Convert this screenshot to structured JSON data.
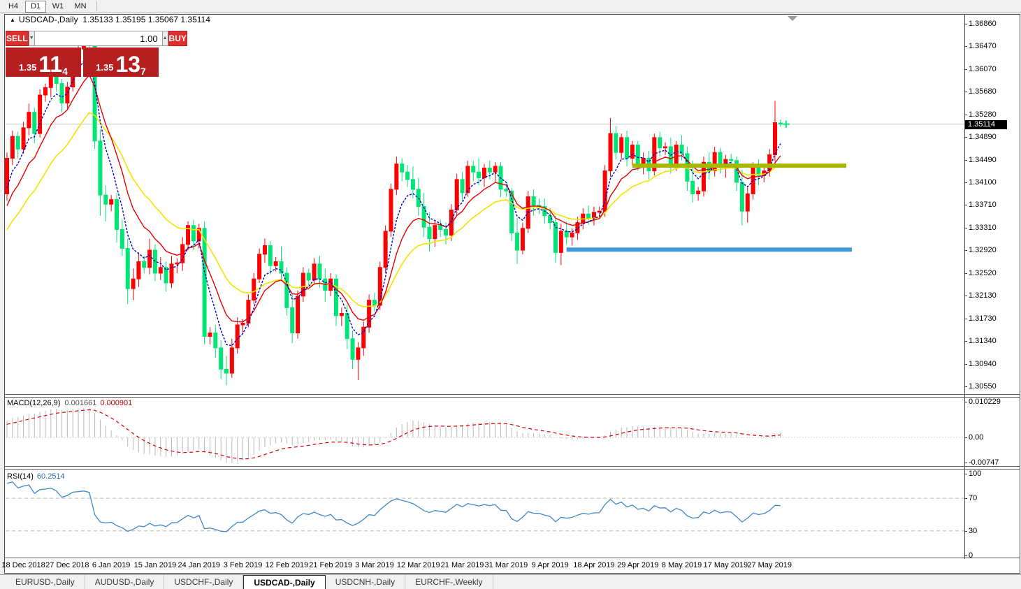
{
  "toolbar": {
    "timeframes": [
      {
        "label": "H4",
        "active": false
      },
      {
        "label": "D1",
        "active": true
      },
      {
        "label": "W1",
        "active": false
      },
      {
        "label": "MN",
        "active": false
      }
    ]
  },
  "chart_header": {
    "collapse_arrow": "▲",
    "symbol": "USDCAD-,Daily",
    "ohlc_text": "1.35133 1.35195 1.35067 1.35114"
  },
  "trade_panel": {
    "sell_label": "SELL",
    "buy_label": "BUY",
    "volume": "1.00",
    "sell_price_small": "1.35",
    "sell_price_big": "11",
    "sell_price_sup": "4",
    "buy_price_small": "1.35",
    "buy_price_big": "13",
    "buy_price_sup": "7"
  },
  "price_tag": "1.35114",
  "macd_panel": {
    "label": "MACD(12,26,9)",
    "value": "0.001661",
    "signal_value": "0.000901",
    "axis_ticks": [
      "0.010229",
      "0.00",
      "-0.00747"
    ]
  },
  "rsi_panel": {
    "label": "RSI(14)",
    "value": "60.2514",
    "axis_ticks": [
      "100",
      "70",
      "30",
      "0"
    ]
  },
  "tabs": [
    {
      "label": "EURUSD-,Daily",
      "active": false
    },
    {
      "label": "AUDUSD-,Daily",
      "active": false
    },
    {
      "label": "USDCHF-,Daily",
      "active": false
    },
    {
      "label": "USDCAD-,Daily",
      "active": true
    },
    {
      "label": "USDCNH-,Daily",
      "active": false
    },
    {
      "label": "EURCHF-,Weekly",
      "active": false
    }
  ],
  "colors": {
    "bull_candle": "#ff0000",
    "bear_candle": "#00e676",
    "ema_fast": "#0000cc",
    "ema_mid": "#e60000",
    "ema_slow": "#f2e400",
    "macd_histogram": "#b8b8b8",
    "macd_signal": "#dd0000",
    "rsi_line": "#4187c7",
    "rsi_levels": "#b5b5b5",
    "support_line": "#3f96d9",
    "resistance_line": "#a8b800",
    "current_price_line": "#c8c8c8",
    "button_red": "#dd2f2f",
    "tile_red": "#b51f1f"
  },
  "chart_data": {
    "type": "candlestick",
    "title": "USDCAD-,Daily",
    "note_color_convention": "up bars red, down bars green",
    "current_bar": {
      "open": 1.35133,
      "high": 1.35195,
      "low": 1.35067,
      "close": 1.35114
    },
    "ylim": [
      1.30489,
      1.37006
    ],
    "price_ticks": [
      "1.36860",
      "1.36470",
      "1.36070",
      "1.35680",
      "1.35280",
      "1.34890",
      "1.34490",
      "1.34100",
      "1.33710",
      "1.33310",
      "1.32920",
      "1.32520",
      "1.32130",
      "1.31730",
      "1.31340",
      "1.30940",
      "1.30550"
    ],
    "date_ticks": [
      {
        "label": "18 Dec 2018",
        "bar": 3
      },
      {
        "label": "27 Dec 2018",
        "bar": 11
      },
      {
        "label": "6 Jan 2019",
        "bar": 19
      },
      {
        "label": "15 Jan 2019",
        "bar": 27
      },
      {
        "label": "24 Jan 2019",
        "bar": 35
      },
      {
        "label": "3 Feb 2019",
        "bar": 43
      },
      {
        "label": "12 Feb 2019",
        "bar": 51
      },
      {
        "label": "21 Feb 2019",
        "bar": 59
      },
      {
        "label": "3 Mar 2019",
        "bar": 67
      },
      {
        "label": "12 Mar 2019",
        "bar": 75
      },
      {
        "label": "21 Mar 2019",
        "bar": 83
      },
      {
        "label": "31 Mar 2019",
        "bar": 91
      },
      {
        "label": "9 Apr 2019",
        "bar": 99
      },
      {
        "label": "18 Apr 2019",
        "bar": 107
      },
      {
        "label": "29 Apr 2019",
        "bar": 115
      },
      {
        "label": "8 May 2019",
        "bar": 123
      },
      {
        "label": "17 May 2019",
        "bar": 131
      },
      {
        "label": "27 May 2019",
        "bar": 139
      }
    ],
    "ohlc": [
      [
        1.339,
        1.3462,
        1.3378,
        1.3452
      ],
      [
        1.3452,
        1.35,
        1.344,
        1.349
      ],
      [
        1.349,
        1.3498,
        1.3452,
        1.3468
      ],
      [
        1.3468,
        1.3515,
        1.346,
        1.3505
      ],
      [
        1.3505,
        1.3547,
        1.3492,
        1.3532
      ],
      [
        1.3532,
        1.354,
        1.3478,
        1.3495
      ],
      [
        1.3495,
        1.3572,
        1.3488,
        1.3562
      ],
      [
        1.3562,
        1.3582,
        1.355,
        1.3575
      ],
      [
        1.3575,
        1.3605,
        1.3558,
        1.3595
      ],
      [
        1.3595,
        1.3608,
        1.3568,
        1.3582
      ],
      [
        1.3582,
        1.359,
        1.3532,
        1.3548
      ],
      [
        1.3548,
        1.3585,
        1.3538,
        1.3576
      ],
      [
        1.3576,
        1.3642,
        1.3568,
        1.3632
      ],
      [
        1.3632,
        1.365,
        1.3618,
        1.3642
      ],
      [
        1.3642,
        1.3664,
        1.3622,
        1.3655
      ],
      [
        1.3655,
        1.3662,
        1.3638,
        1.3648
      ],
      [
        1.3648,
        1.366,
        1.3468,
        1.3482
      ],
      [
        1.3482,
        1.3502,
        1.3352,
        1.3388
      ],
      [
        1.3388,
        1.3405,
        1.3342,
        1.3372
      ],
      [
        1.3372,
        1.3388,
        1.336,
        1.338
      ],
      [
        1.338,
        1.3392,
        1.3305,
        1.3328
      ],
      [
        1.3328,
        1.3345,
        1.3282,
        1.3295
      ],
      [
        1.3295,
        1.3312,
        1.3198,
        1.3225
      ],
      [
        1.3225,
        1.326,
        1.3205,
        1.3242
      ],
      [
        1.3242,
        1.3288,
        1.3228,
        1.3272
      ],
      [
        1.3272,
        1.3282,
        1.3252,
        1.3262
      ],
      [
        1.3262,
        1.3312,
        1.325,
        1.3292
      ],
      [
        1.3292,
        1.3302,
        1.3238,
        1.3252
      ],
      [
        1.3252,
        1.328,
        1.324,
        1.3262
      ],
      [
        1.3262,
        1.3272,
        1.322,
        1.3235
      ],
      [
        1.3235,
        1.3282,
        1.3226,
        1.3268
      ],
      [
        1.3268,
        1.3278,
        1.3252,
        1.327
      ],
      [
        1.327,
        1.3315,
        1.3256,
        1.3302
      ],
      [
        1.3302,
        1.3342,
        1.3292,
        1.3335
      ],
      [
        1.3335,
        1.3345,
        1.3292,
        1.3308
      ],
      [
        1.3308,
        1.3338,
        1.3295,
        1.333
      ],
      [
        1.333,
        1.3342,
        1.3128,
        1.3142
      ],
      [
        1.3142,
        1.3158,
        1.3128,
        1.3148
      ],
      [
        1.3148,
        1.3162,
        1.3105,
        1.3122
      ],
      [
        1.3122,
        1.3135,
        1.3068,
        1.3085
      ],
      [
        1.3085,
        1.3108,
        1.3057,
        1.3078
      ],
      [
        1.3078,
        1.3138,
        1.307,
        1.3122
      ],
      [
        1.3122,
        1.3175,
        1.3112,
        1.3162
      ],
      [
        1.3162,
        1.3172,
        1.3148,
        1.3165
      ],
      [
        1.3165,
        1.3215,
        1.3158,
        1.3205
      ],
      [
        1.3205,
        1.3252,
        1.3198,
        1.3242
      ],
      [
        1.3242,
        1.3295,
        1.3235,
        1.3285
      ],
      [
        1.3285,
        1.3312,
        1.327,
        1.33
      ],
      [
        1.33,
        1.3308,
        1.325,
        1.3265
      ],
      [
        1.3265,
        1.328,
        1.3255,
        1.3272
      ],
      [
        1.3272,
        1.3298,
        1.3238,
        1.3252
      ],
      [
        1.3252,
        1.3262,
        1.3178,
        1.3192
      ],
      [
        1.3192,
        1.3215,
        1.313,
        1.3148
      ],
      [
        1.3148,
        1.3222,
        1.3138,
        1.3212
      ],
      [
        1.3212,
        1.3262,
        1.3202,
        1.3252
      ],
      [
        1.3252,
        1.326,
        1.323,
        1.324
      ],
      [
        1.324,
        1.3278,
        1.3232,
        1.3268
      ],
      [
        1.3268,
        1.3282,
        1.3226,
        1.3242
      ],
      [
        1.3242,
        1.326,
        1.3202,
        1.3222
      ],
      [
        1.3222,
        1.3252,
        1.3212,
        1.3242
      ],
      [
        1.3242,
        1.325,
        1.316,
        1.3178
      ],
      [
        1.3178,
        1.3192,
        1.316,
        1.3182
      ],
      [
        1.3182,
        1.3198,
        1.312,
        1.3138
      ],
      [
        1.3138,
        1.3152,
        1.3085,
        1.3102
      ],
      [
        1.3102,
        1.3132,
        1.3066,
        1.3122
      ],
      [
        1.3122,
        1.3168,
        1.3108,
        1.3158
      ],
      [
        1.3158,
        1.3215,
        1.3148,
        1.3205
      ],
      [
        1.3205,
        1.3218,
        1.3185,
        1.3196
      ],
      [
        1.3196,
        1.3272,
        1.3188,
        1.3262
      ],
      [
        1.3262,
        1.3335,
        1.3252,
        1.3325
      ],
      [
        1.3325,
        1.3408,
        1.3315,
        1.3398
      ],
      [
        1.3398,
        1.3455,
        1.3388,
        1.3442
      ],
      [
        1.3442,
        1.3452,
        1.3412,
        1.3428
      ],
      [
        1.3428,
        1.344,
        1.3402,
        1.3415
      ],
      [
        1.3415,
        1.3438,
        1.3382,
        1.3398
      ],
      [
        1.3398,
        1.3418,
        1.3352,
        1.3368
      ],
      [
        1.3368,
        1.3392,
        1.3315,
        1.3332
      ],
      [
        1.3332,
        1.3358,
        1.329,
        1.3312
      ],
      [
        1.3312,
        1.3345,
        1.3298,
        1.3335
      ],
      [
        1.3335,
        1.3345,
        1.3315,
        1.3328
      ],
      [
        1.3328,
        1.334,
        1.3302,
        1.3318
      ],
      [
        1.3318,
        1.3372,
        1.3308,
        1.3362
      ],
      [
        1.3362,
        1.3425,
        1.3352,
        1.3415
      ],
      [
        1.3415,
        1.3428,
        1.3378,
        1.3392
      ],
      [
        1.3392,
        1.3448,
        1.3385,
        1.3438
      ],
      [
        1.3438,
        1.3448,
        1.3412,
        1.3428
      ],
      [
        1.3428,
        1.3452,
        1.3405,
        1.3418
      ],
      [
        1.3418,
        1.3442,
        1.3402,
        1.3435
      ],
      [
        1.3435,
        1.3448,
        1.3415,
        1.3428
      ],
      [
        1.3428,
        1.3445,
        1.341,
        1.3438
      ],
      [
        1.3438,
        1.3445,
        1.3385,
        1.3398
      ],
      [
        1.3398,
        1.3408,
        1.3385,
        1.3395
      ],
      [
        1.3395,
        1.34,
        1.3308,
        1.3322
      ],
      [
        1.3322,
        1.3348,
        1.3268,
        1.3292
      ],
      [
        1.3292,
        1.334,
        1.3285,
        1.333
      ],
      [
        1.333,
        1.3395,
        1.3322,
        1.3385
      ],
      [
        1.3385,
        1.3398,
        1.3352,
        1.337
      ],
      [
        1.337,
        1.3382,
        1.3355,
        1.3368
      ],
      [
        1.3368,
        1.3382,
        1.3338,
        1.3352
      ],
      [
        1.3352,
        1.3365,
        1.3328,
        1.334
      ],
      [
        1.334,
        1.3352,
        1.327,
        1.3288
      ],
      [
        1.3288,
        1.3338,
        1.3266,
        1.3325
      ],
      [
        1.3325,
        1.3342,
        1.3302,
        1.3315
      ],
      [
        1.3315,
        1.333,
        1.33,
        1.3322
      ],
      [
        1.3322,
        1.335,
        1.331,
        1.334
      ],
      [
        1.334,
        1.3365,
        1.3328,
        1.3355
      ],
      [
        1.3355,
        1.337,
        1.3336,
        1.3348
      ],
      [
        1.3348,
        1.3368,
        1.3335,
        1.3358
      ],
      [
        1.3358,
        1.3368,
        1.3346,
        1.336
      ],
      [
        1.336,
        1.344,
        1.335,
        1.343
      ],
      [
        1.343,
        1.3522,
        1.342,
        1.3495
      ],
      [
        1.3495,
        1.3508,
        1.345,
        1.3462
      ],
      [
        1.3462,
        1.3495,
        1.345,
        1.3488
      ],
      [
        1.3488,
        1.35,
        1.3438,
        1.3452
      ],
      [
        1.3452,
        1.3482,
        1.344,
        1.3475
      ],
      [
        1.3475,
        1.3482,
        1.343,
        1.3442
      ],
      [
        1.3442,
        1.3462,
        1.3424,
        1.3452
      ],
      [
        1.3452,
        1.3465,
        1.3415,
        1.343
      ],
      [
        1.343,
        1.3495,
        1.3422,
        1.3488
      ],
      [
        1.3488,
        1.3498,
        1.3455,
        1.347
      ],
      [
        1.347,
        1.348,
        1.3458,
        1.3472
      ],
      [
        1.3472,
        1.3488,
        1.3425,
        1.344
      ],
      [
        1.344,
        1.3482,
        1.343,
        1.3475
      ],
      [
        1.3475,
        1.3492,
        1.3448,
        1.346
      ],
      [
        1.346,
        1.3472,
        1.3395,
        1.3412
      ],
      [
        1.3412,
        1.3448,
        1.3375,
        1.339
      ],
      [
        1.339,
        1.3402,
        1.3378,
        1.3395
      ],
      [
        1.3395,
        1.3455,
        1.3385,
        1.3445
      ],
      [
        1.3445,
        1.3462,
        1.3415,
        1.343
      ],
      [
        1.343,
        1.3472,
        1.342,
        1.3462
      ],
      [
        1.3462,
        1.347,
        1.3425,
        1.344
      ],
      [
        1.344,
        1.3458,
        1.3418,
        1.345
      ],
      [
        1.345,
        1.346,
        1.3436,
        1.3448
      ],
      [
        1.3448,
        1.3455,
        1.3395,
        1.341
      ],
      [
        1.341,
        1.3432,
        1.3335,
        1.336
      ],
      [
        1.336,
        1.3402,
        1.334,
        1.339
      ],
      [
        1.339,
        1.3445,
        1.338,
        1.3435
      ],
      [
        1.3435,
        1.345,
        1.3405,
        1.3422
      ],
      [
        1.3422,
        1.3438,
        1.341,
        1.343
      ],
      [
        1.343,
        1.3468,
        1.342,
        1.3458
      ],
      [
        1.3458,
        1.3552,
        1.3446,
        1.3514
      ],
      [
        1.35133,
        1.35195,
        1.35067,
        1.35114
      ]
    ],
    "prehistory_closes": [
      1.3205,
      1.322,
      1.3212,
      1.3238,
      1.3255,
      1.3248,
      1.327,
      1.3285,
      1.3278,
      1.33,
      1.3315,
      1.3308,
      1.333,
      1.3345,
      1.3338,
      1.3358,
      1.3372,
      1.3365,
      1.3382,
      1.3395
    ],
    "overlays": {
      "ema_periods": [
        5,
        10,
        20
      ],
      "support_line": {
        "price": 1.3293,
        "from_bar": 102,
        "to_bar": 154
      },
      "resistance_line": {
        "price": 1.3439,
        "from_bar": 114,
        "to_bar": 153
      },
      "current_price": 1.35114
    },
    "indicators": {
      "macd": {
        "fast": 12,
        "slow": 26,
        "signal": 9,
        "value": 0.001661,
        "signal_value": 0.000901,
        "ylim": [
          -0.0074,
          0.0112
        ]
      },
      "rsi": {
        "period": 14,
        "value": 60.2514,
        "levels": [
          70,
          30
        ],
        "ylim": [
          0,
          100
        ]
      }
    }
  }
}
